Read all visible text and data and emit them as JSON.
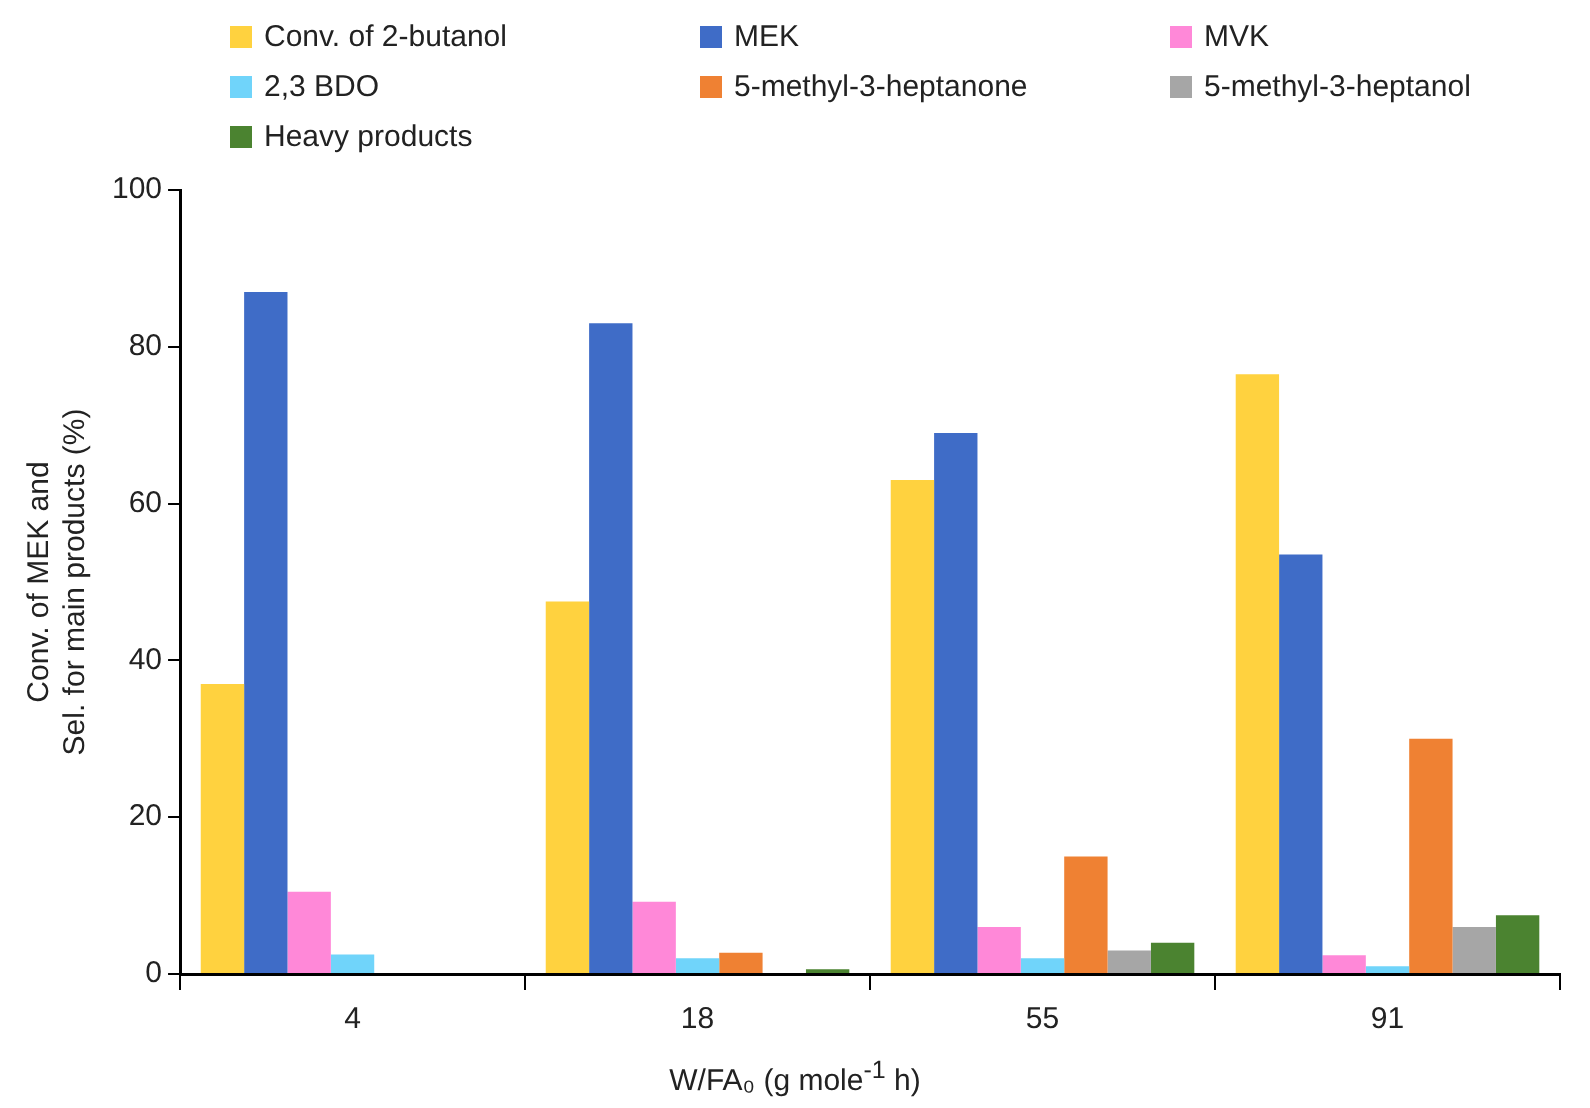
{
  "chart_data": {
    "type": "bar",
    "xlabel": "W/FA₀ (g mole$^{-1}$ h)",
    "ylabel": "Conv. of MEK and\nSel. for main products (%)",
    "categories": [
      "4",
      "18",
      "55",
      "91"
    ],
    "series": [
      {
        "name": "Conv. of 2-butanol",
        "color": "#ffd23f",
        "values": [
          37,
          47.5,
          63,
          76.5
        ]
      },
      {
        "name": "MEK",
        "color": "#3f6cc7",
        "values": [
          87,
          83,
          69,
          53.5
        ]
      },
      {
        "name": "MVK",
        "color": "#ff88d8",
        "values": [
          10.5,
          9.2,
          6,
          2.4
        ]
      },
      {
        "name": "2,3 BDO",
        "color": "#70d4fa",
        "values": [
          2.5,
          2,
          2,
          1
        ]
      },
      {
        "name": "5-methyl-3-heptanone",
        "color": "#ef8133",
        "values": [
          0,
          2.7,
          15,
          30
        ]
      },
      {
        "name": "5-methyl-3-heptanol",
        "color": "#a6a6a6",
        "values": [
          0,
          0,
          3,
          6
        ]
      },
      {
        "name": "Heavy products",
        "color": "#4b8330",
        "values": [
          0,
          0.6,
          4,
          7.5
        ]
      }
    ],
    "ylim": [
      0,
      100
    ],
    "yticks": [
      0,
      20,
      40,
      60,
      80,
      100
    ],
    "grid": false,
    "legend": "top"
  }
}
